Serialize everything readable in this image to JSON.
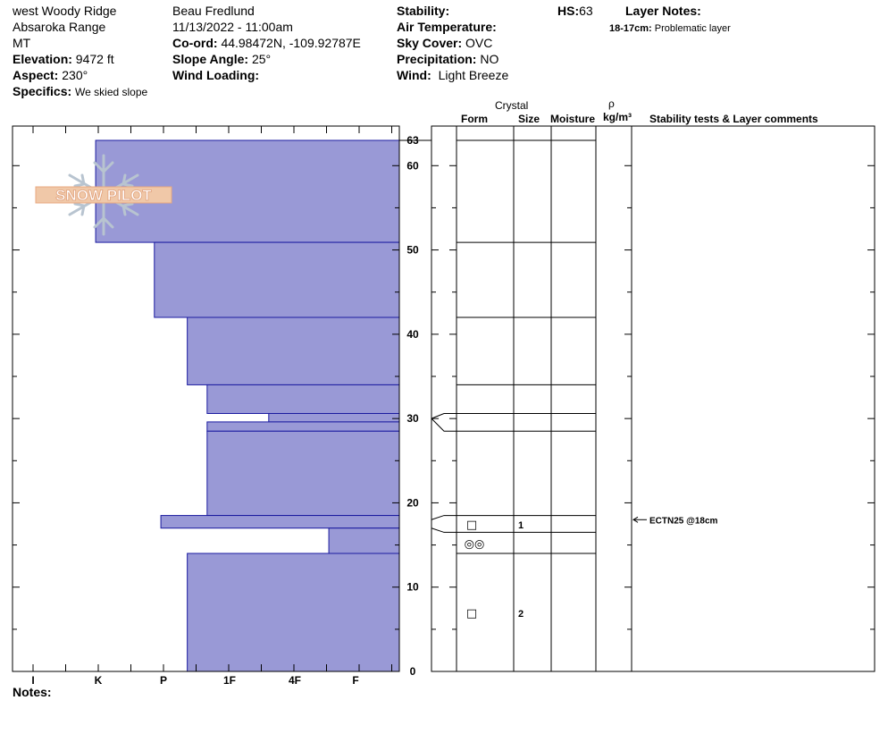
{
  "header": {
    "location": "west Woody Ridge",
    "range": "Absaroka Range",
    "state": "MT",
    "elevation_label": "Elevation:",
    "elevation_value": "9472 ft",
    "aspect_label": "Aspect:",
    "aspect_value": "230°",
    "specifics_label": "Specifics:",
    "specifics_value": "We skied slope",
    "observer": "Beau  Fredlund",
    "datetime": "11/13/2022 - 11:00am",
    "coord_label": "Co-ord:",
    "coord_value": "44.98472N, -109.92787E",
    "slope_label": "Slope Angle:",
    "slope_value": "25°",
    "wind_loading_label": "Wind Loading:",
    "stability_label": "Stability:",
    "air_temp_label": "Air Temperature:",
    "sky_label": "Sky Cover:",
    "sky_value": "OVC",
    "precip_label": "Precipitation:",
    "precip_value": "NO",
    "wind_label": "Wind:",
    "wind_value": "Light Breeze",
    "hs_label": "HS:",
    "hs_value": "63",
    "layer_notes_label": "Layer Notes:",
    "layer_note_range": "18-17cm:",
    "layer_note_text": "Problematic layer"
  },
  "logo_text": "SNOW PILOT",
  "notes_label": "Notes:",
  "columns": {
    "crystal": "Crystal",
    "form": "Form",
    "size": "Size",
    "moisture": "Moisture",
    "rho": "ρ",
    "density_unit": "kg/m³",
    "stability": "Stability tests & Layer comments"
  },
  "chart_data": {
    "type": "bar",
    "orientation": "horizontal",
    "title": "",
    "ylabel": "",
    "xlabel": "",
    "ylim": [
      0,
      63
    ],
    "y_ticks": [
      0,
      10,
      20,
      30,
      40,
      50,
      60,
      63
    ],
    "hardness_ticks": [
      "I",
      "K",
      "P",
      "1F",
      "4F",
      "F"
    ],
    "layers": [
      {
        "top": 63,
        "bottom": 50.9,
        "hardness": 0.96
      },
      {
        "top": 50.9,
        "bottom": 42,
        "hardness": 1.86
      },
      {
        "top": 42,
        "bottom": 34,
        "hardness": 2.36
      },
      {
        "top": 34,
        "bottom": 30.6,
        "hardness": 2.66
      },
      {
        "top": 30.6,
        "bottom": 29.6,
        "hardness": 3.6
      },
      {
        "top": 29.6,
        "bottom": 28.5,
        "hardness": 2.66
      },
      {
        "top": 28.5,
        "bottom": 18.5,
        "hardness": 2.66
      },
      {
        "top": 18.5,
        "bottom": 17,
        "hardness": 1.96
      },
      {
        "top": 17,
        "bottom": 14,
        "hardness": 4.56
      },
      {
        "top": 14,
        "bottom": 0,
        "hardness": 2.36
      }
    ],
    "grid_layers": [
      63,
      50.9,
      42,
      34,
      30.6,
      28.5,
      18.5,
      16.5,
      14
    ],
    "grain_marks": [
      {
        "depth": 17.4,
        "form": "□",
        "size": "1"
      },
      {
        "depth": 15.1,
        "form": "◎◎",
        "size": ""
      },
      {
        "depth": 6.9,
        "form": "□",
        "size": "2"
      }
    ],
    "stability_tests": [
      {
        "depth": 18,
        "label": "ECTN25 @18cm"
      }
    ],
    "colors": {
      "fill": "#9999d6",
      "stroke": "#1a1aa0"
    }
  }
}
